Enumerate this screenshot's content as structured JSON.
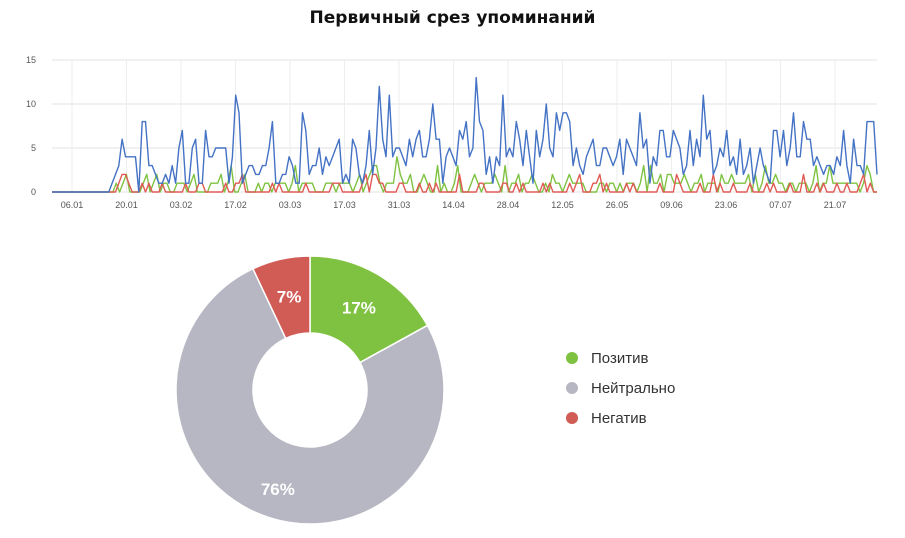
{
  "title": "Первичный срез упоминаний",
  "chart_data": [
    {
      "type": "line",
      "title": "Первичный срез упоминаний",
      "ylim": [
        0,
        15
      ],
      "yticks": [
        "0",
        "5",
        "10",
        "15"
      ],
      "xticks": [
        "06.01",
        "20.01",
        "03.02",
        "17.02",
        "03.03",
        "17.03",
        "31.03",
        "14.04",
        "28.04",
        "12.05",
        "26.05",
        "09.06",
        "23.06",
        "07.07",
        "21.07"
      ],
      "grid": true,
      "x_start": "30.12",
      "x_end": "23.07",
      "series": [
        {
          "color": "#4472c4",
          "values": [
            0,
            0,
            0,
            0,
            0,
            0,
            0,
            0,
            0,
            0,
            0,
            0,
            0,
            0,
            0,
            0,
            0,
            0,
            1,
            2,
            3,
            6,
            4,
            4,
            4,
            4,
            0,
            8,
            8,
            3,
            3,
            2,
            1,
            1,
            2,
            1,
            3,
            1,
            5,
            7,
            1,
            1,
            5,
            6,
            1,
            1,
            7,
            4,
            4,
            5,
            5,
            5,
            5,
            1,
            4,
            11,
            9,
            1,
            2,
            3,
            3,
            2,
            2,
            3,
            3,
            5,
            8,
            1,
            1,
            2,
            2,
            4,
            3,
            1,
            1,
            9,
            7,
            2,
            3,
            3,
            5,
            2,
            4,
            3,
            4,
            5,
            6,
            1,
            2,
            1,
            6,
            5,
            2,
            1,
            3,
            7,
            2,
            5,
            12,
            6,
            4,
            11,
            4,
            5,
            5,
            4,
            3,
            6,
            4,
            6,
            7,
            4,
            4,
            6,
            10,
            6,
            6,
            1,
            4,
            5,
            4,
            3,
            7,
            6,
            8,
            4,
            5,
            13,
            8,
            7,
            2,
            4,
            1,
            4,
            3,
            11,
            4,
            5,
            4,
            8,
            6,
            3,
            7,
            4,
            1,
            7,
            4,
            6,
            10,
            5,
            4,
            9,
            7,
            9,
            9,
            8,
            3,
            5,
            3,
            2,
            4,
            5,
            6,
            3,
            3,
            5,
            5,
            4,
            3,
            4,
            6,
            2,
            6,
            5,
            4,
            3,
            9,
            5,
            6,
            1,
            4,
            3,
            7,
            7,
            4,
            4,
            7,
            6,
            5,
            2,
            3,
            7,
            3,
            6,
            4,
            11,
            6,
            7,
            2,
            3,
            5,
            4,
            7,
            3,
            4,
            2,
            6,
            2,
            3,
            5,
            1,
            3,
            5,
            3,
            2,
            1,
            7,
            7,
            4,
            7,
            3,
            5,
            9,
            4,
            4,
            8,
            6,
            6,
            3,
            4,
            3,
            2,
            3,
            3,
            2,
            4,
            3,
            7,
            3,
            1,
            6,
            3,
            3,
            2,
            8,
            8,
            8,
            2
          ]
        },
        {
          "color": "#7fc241",
          "values": [
            0,
            0,
            0,
            0,
            0,
            0,
            0,
            0,
            0,
            0,
            0,
            0,
            0,
            0,
            0,
            0,
            0,
            0,
            0,
            1,
            0,
            1,
            2,
            0,
            0,
            0,
            0,
            1,
            2,
            0,
            1,
            2,
            0,
            1,
            1,
            0,
            0,
            1,
            1,
            1,
            0,
            1,
            2,
            0,
            0,
            0,
            0,
            1,
            1,
            1,
            2,
            0,
            1,
            3,
            0,
            0,
            1,
            2,
            0,
            0,
            0,
            1,
            0,
            1,
            1,
            0,
            1,
            1,
            1,
            1,
            0,
            1,
            3,
            0,
            1,
            1,
            1,
            1,
            0,
            0,
            0,
            1,
            1,
            1,
            0,
            1,
            1,
            1,
            1,
            0,
            1,
            2,
            0,
            1,
            2,
            3,
            3,
            1,
            0,
            1,
            1,
            1,
            4,
            2,
            1,
            1,
            2,
            0,
            0,
            1,
            2,
            1,
            0,
            0,
            3,
            0,
            1,
            0,
            0,
            1,
            3,
            0,
            0,
            0,
            1,
            2,
            1,
            0,
            1,
            1,
            1,
            2,
            1,
            0,
            3,
            0,
            1,
            1,
            2,
            0,
            1,
            1,
            2,
            1,
            0,
            0,
            1,
            0,
            2,
            1,
            1,
            0,
            1,
            2,
            1,
            1,
            1,
            1,
            0,
            0,
            0,
            0,
            1,
            1,
            0,
            1,
            1,
            0,
            1,
            0,
            1,
            1,
            1,
            0,
            1,
            3,
            0,
            3,
            1,
            1,
            2,
            0,
            2,
            2,
            1,
            1,
            1,
            2,
            1,
            0,
            1,
            1,
            2,
            0,
            1,
            1,
            1,
            0,
            2,
            1,
            1,
            2,
            1,
            1,
            1,
            1,
            2,
            0,
            2,
            0,
            1,
            3,
            1,
            1,
            2,
            1,
            1,
            0,
            1,
            1,
            0,
            1,
            1,
            1,
            0,
            1,
            3,
            0,
            1,
            1,
            3,
            1,
            1,
            1,
            1,
            1,
            1,
            1,
            1,
            0,
            1,
            3,
            2,
            0,
            0
          ]
        },
        {
          "color": "#e05a55",
          "values": [
            0,
            0,
            0,
            0,
            0,
            0,
            0,
            0,
            0,
            0,
            0,
            0,
            0,
            0,
            0,
            0,
            0,
            0,
            0,
            0,
            1,
            2,
            2,
            1,
            0,
            0,
            0,
            1,
            0,
            1,
            0,
            0,
            0,
            1,
            0,
            0,
            0,
            0,
            0,
            0,
            1,
            0,
            0,
            0,
            1,
            1,
            0,
            0,
            0,
            0,
            0,
            0,
            1,
            0,
            0,
            1,
            1,
            2,
            0,
            0,
            0,
            0,
            0,
            0,
            0,
            0,
            1,
            0,
            1,
            0,
            0,
            0,
            0,
            0,
            0,
            0,
            1,
            0,
            0,
            0,
            0,
            0,
            0,
            0,
            1,
            1,
            1,
            0,
            0,
            0,
            0,
            0,
            0,
            1,
            2,
            0,
            2,
            2,
            1,
            1,
            0,
            0,
            0,
            0,
            1,
            1,
            0,
            0,
            0,
            0,
            1,
            0,
            0,
            1,
            0,
            1,
            0,
            0,
            0,
            0,
            0,
            0,
            2,
            0,
            0,
            0,
            0,
            0,
            1,
            1,
            0,
            0,
            0,
            0,
            0,
            1,
            1,
            0,
            0,
            1,
            0,
            1,
            0,
            0,
            0,
            0,
            0,
            1,
            0,
            1,
            0,
            0,
            0,
            0,
            0,
            1,
            0,
            1,
            2,
            0,
            0,
            0,
            1,
            1,
            2,
            0,
            1,
            0,
            0,
            0,
            0,
            0,
            1,
            0,
            1,
            0,
            0,
            0,
            0,
            0,
            0,
            0,
            1,
            0,
            0,
            0,
            0,
            2,
            1,
            0,
            0,
            0,
            0,
            0,
            1,
            0,
            0,
            0,
            2,
            0,
            1,
            0,
            0,
            0,
            1,
            0,
            0,
            0,
            0,
            1,
            0,
            0,
            0,
            0,
            1,
            0,
            1,
            0,
            0,
            0,
            0,
            1,
            0,
            0,
            0,
            2,
            0,
            0,
            0,
            1,
            0,
            1,
            0,
            0,
            0,
            1,
            0,
            0,
            1,
            0,
            0,
            0,
            1,
            2,
            0,
            1,
            0,
            0
          ]
        }
      ]
    },
    {
      "type": "pie",
      "donut": true,
      "slices": [
        {
          "name": "Позитив",
          "value": 17,
          "label": "17%",
          "color": "#7fc241"
        },
        {
          "name": "Нейтрально",
          "value": 76,
          "label": "76%",
          "color": "#b6b7c2"
        },
        {
          "name": "Негатив",
          "value": 7,
          "label": "7%",
          "color": "#d15b55"
        }
      ],
      "legend": "right"
    }
  ]
}
